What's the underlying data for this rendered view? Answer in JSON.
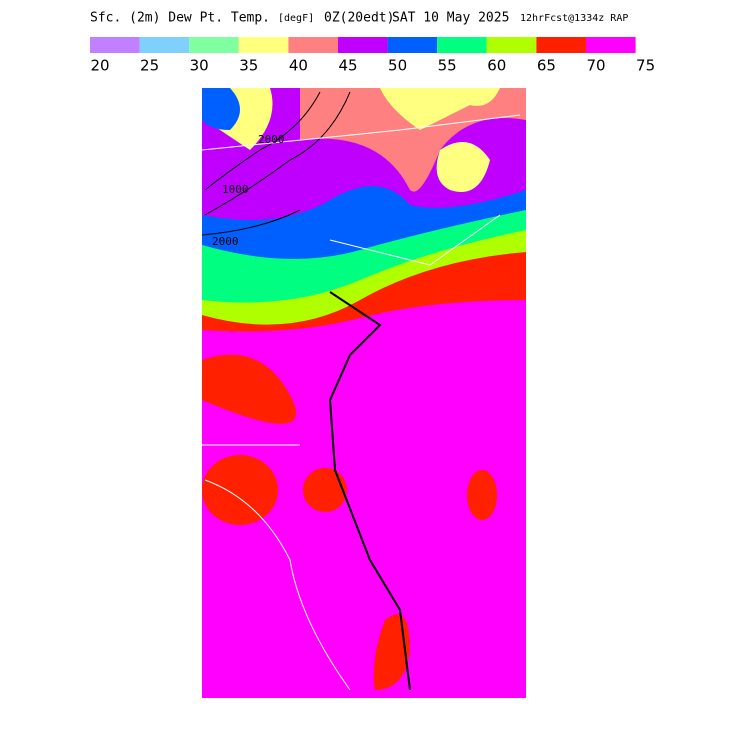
{
  "header": {
    "field": "Sfc. (2m) Dew Pt. Temp.",
    "units": "[degF]",
    "valid": "0Z(20edt)",
    "date": "SAT 10 May 2025",
    "run": "12hrFcst@1334z RAP"
  },
  "legend": {
    "colors": [
      "#c080ff",
      "#80d0ff",
      "#80ff a0",
      "#ffff80",
      "#ff8080",
      "#c000ff",
      "#0060ff",
      "#00ff80",
      "#b0ff00",
      "#ff2000",
      "#ff00ff"
    ],
    "labels": [
      20,
      25,
      30,
      35,
      40,
      45,
      50,
      55,
      60,
      65,
      70,
      75
    ]
  },
  "contours": [
    "2000",
    "1000",
    "2000"
  ]
}
